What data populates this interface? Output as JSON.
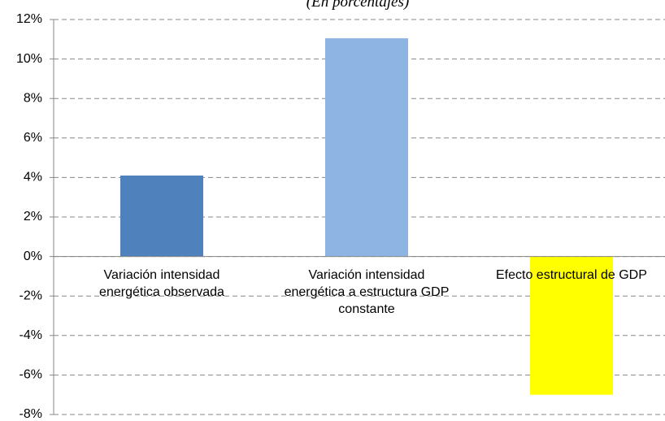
{
  "chart_data": {
    "type": "bar",
    "subtitle": "(En porcentajes)",
    "categories": [
      "Variación intensidad energética observada",
      "Variación intensidad energética a estructura GDP constante",
      "Efecto estructural de GDP"
    ],
    "values": [
      4.1,
      11.05,
      -7.0
    ],
    "colors": [
      "#4f81bd",
      "#8eb4e3",
      "#ffff00"
    ],
    "ylim": [
      -8,
      12
    ],
    "yticks": [
      {
        "value": -8,
        "label": "-8%"
      },
      {
        "value": -6,
        "label": "-6%"
      },
      {
        "value": -4,
        "label": "-4%"
      },
      {
        "value": -2,
        "label": "-2%"
      },
      {
        "value": 0,
        "label": "0%"
      },
      {
        "value": 2,
        "label": "2%"
      },
      {
        "value": 4,
        "label": "4%"
      },
      {
        "value": 6,
        "label": "6%"
      },
      {
        "value": 8,
        "label": "8%"
      },
      {
        "value": 10,
        "label": "10%"
      },
      {
        "value": 12,
        "label": "12%"
      }
    ],
    "grid": true
  }
}
